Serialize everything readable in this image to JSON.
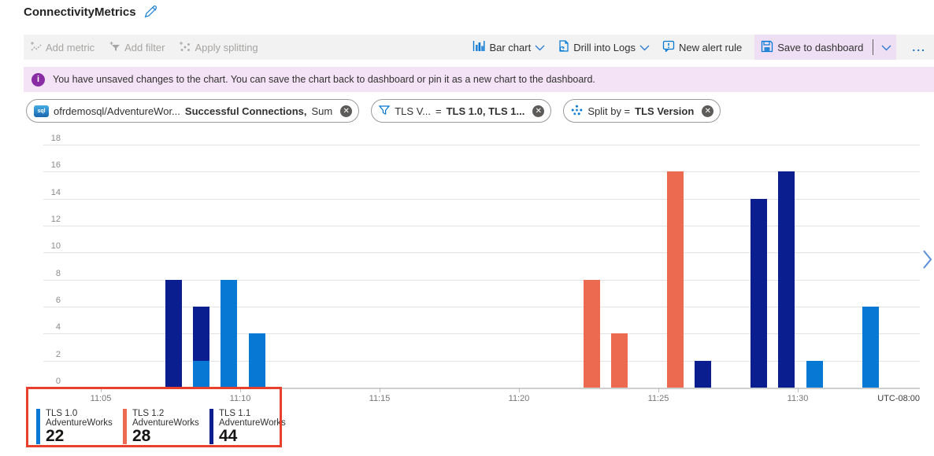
{
  "header": {
    "title": "ConnectivityMetrics"
  },
  "toolbar": {
    "left": [
      {
        "label": "Add metric"
      },
      {
        "label": "Add filter"
      },
      {
        "label": "Apply splitting"
      }
    ],
    "right": {
      "bar_chart_label": "Bar chart",
      "drill_label": "Drill into Logs",
      "alert_label": "New alert rule",
      "save_label": "Save to dashboard",
      "more_label": "..."
    }
  },
  "banner": {
    "text": "You have unsaved changes to the chart. You can save the chart back to dashboard or pin it as a new chart to the dashboard.",
    "bg": "#F4E3F6",
    "icon_color": "#8A2DA5"
  },
  "pills": [
    {
      "icon": "sql-database-icon",
      "sql_label": "sql",
      "text": "ofrdemosql/AdventureWor...",
      "bold": "Successful Connections,",
      "suffix": "Sum"
    },
    {
      "icon": "filter-icon",
      "text": "TLS V...",
      "operator": "=",
      "bold": "TLS 1.0, TLS 1..."
    },
    {
      "icon": "split-icon",
      "text": "Split by =",
      "bold": "TLS Version"
    }
  ],
  "chart_data": {
    "type": "bar",
    "title": "",
    "xlabel": "",
    "ylabel": "",
    "ylim": [
      0,
      18
    ],
    "y_ticks": [
      0,
      2,
      4,
      6,
      8,
      10,
      12,
      14,
      16,
      18
    ],
    "x_ticks": [
      "11:05",
      "11:10",
      "11:15",
      "11:20",
      "11:25",
      "11:30"
    ],
    "timezone": "UTC-08:00",
    "grid": true,
    "legend_position": "bottom",
    "series": [
      {
        "name": "TLS 1.0",
        "color": "#0778D4"
      },
      {
        "name": "TLS 1.2",
        "color": "#EC6A50"
      },
      {
        "name": "TLS 1.1",
        "color": "#0B1E90"
      }
    ],
    "bars": [
      {
        "time": "11:07",
        "segments": [
          {
            "series": "TLS 1.1",
            "value": 8
          }
        ]
      },
      {
        "time": "11:08",
        "segments": [
          {
            "series": "TLS 1.0",
            "value": 2
          },
          {
            "series": "TLS 1.1",
            "value": 4
          }
        ]
      },
      {
        "time": "11:09",
        "segments": [
          {
            "series": "TLS 1.0",
            "value": 8
          }
        ]
      },
      {
        "time": "11:10",
        "segments": [
          {
            "series": "TLS 1.0",
            "value": 4
          }
        ]
      },
      {
        "time": "11:22",
        "segments": [
          {
            "series": "TLS 1.2",
            "value": 8
          }
        ]
      },
      {
        "time": "11:23",
        "segments": [
          {
            "series": "TLS 1.2",
            "value": 4
          }
        ]
      },
      {
        "time": "11:25",
        "segments": [
          {
            "series": "TLS 1.2",
            "value": 16
          }
        ]
      },
      {
        "time": "11:26",
        "segments": [
          {
            "series": "TLS 1.1",
            "value": 2
          }
        ]
      },
      {
        "time": "11:28",
        "segments": [
          {
            "series": "TLS 1.1",
            "value": 14
          }
        ]
      },
      {
        "time": "11:29",
        "segments": [
          {
            "series": "TLS 1.1",
            "value": 16
          }
        ]
      },
      {
        "time": "11:30",
        "segments": [
          {
            "series": "TLS 1.0",
            "value": 2
          }
        ]
      },
      {
        "time": "11:32",
        "segments": [
          {
            "series": "TLS 1.0",
            "value": 6
          }
        ]
      }
    ]
  },
  "legend": [
    {
      "series": "TLS 1.0",
      "resource": "AdventureWorks",
      "total": "22",
      "color": "#0778D4"
    },
    {
      "series": "TLS 1.2",
      "resource": "AdventureWorks",
      "total": "28",
      "color": "#EC6A50"
    },
    {
      "series": "TLS 1.1",
      "resource": "AdventureWorks",
      "total": "44",
      "color": "#0B1E90"
    }
  ],
  "annotation": {
    "type": "highlight-box",
    "color": "#E8402C"
  },
  "colors": {
    "accent_blue": "#0078D4",
    "toolbar_bg": "#F2F2F2",
    "save_highlight_bg": "#EEDFF5",
    "disabled_text": "#A6A4A2"
  }
}
